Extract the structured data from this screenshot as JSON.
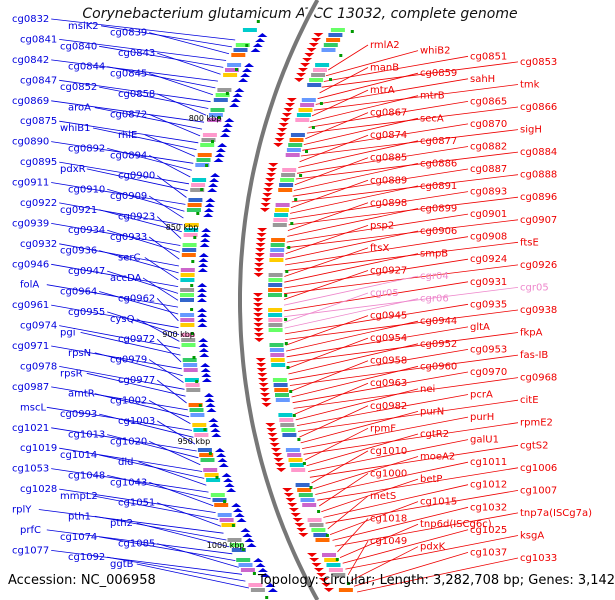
{
  "title": "Corynebacterium glutamicum ATCC 13032, complete genome",
  "footer": {
    "accession": "Accession: NC_006958",
    "topology": "Topology: circular; Length: 3,282,708 bp; Genes: 3,142"
  },
  "scale_labels": [
    "800 kbp",
    "850 kbp",
    "900 kbp",
    "950 kbp",
    "1000 kbp"
  ],
  "left_labels": [
    "cg0832",
    "msiK2",
    "cg0839",
    "cg0841",
    "cg0840",
    "cg0843",
    "cg0842",
    "cg0844",
    "cg0845",
    "cg0847",
    "cg0852",
    "cg0858",
    "cg0869",
    "aroA",
    "cg0872",
    "cg0875",
    "whiB1",
    "rhlE",
    "cg0890",
    "cg0892",
    "cg0894",
    "cg0895",
    "pdxR",
    "cg0900",
    "cg0911",
    "cg0910",
    "cg0909",
    "cg0922",
    "cg0921",
    "cg0923",
    "cg0939",
    "cg0934",
    "cg0933",
    "cg0932",
    "cg0936",
    "serC",
    "cg0946",
    "cg0947",
    "accDA",
    "folA",
    "cg0964",
    "cg0962",
    "cg0961",
    "cg0955",
    "cysQ",
    "cg0974",
    "pgi",
    "cg0972",
    "cg0971",
    "rpsN",
    "cg0979",
    "cg0978",
    "rpsR",
    "cg0977",
    "cg0987",
    "amtR",
    "cg1002",
    "mscL",
    "cg0993",
    "cg1003",
    "cg1021",
    "cg1013",
    "cg1020",
    "cg1019",
    "cg1014",
    "dld",
    "cg1053",
    "cg1048",
    "cg1043",
    "cg1028",
    "mmpL2",
    "cg1051",
    "rplY",
    "pth1",
    "pth2",
    "prfC",
    "cg1074",
    "cg1085",
    "cg1077",
    "cg1092",
    "ggtB"
  ],
  "right_labels": [
    "rmlA2",
    "whiB2",
    "cg0851",
    "cg0853",
    "manB",
    "cg0859",
    "sahH",
    "tmk",
    "mtrA",
    "mtrB",
    "cg0865",
    "cg0866",
    "cg0867",
    "secA",
    "cg0870",
    "sigH",
    "cg0874",
    "cg0877",
    "cg0882",
    "cg0884",
    "cg0885",
    "cg0886",
    "cg0887",
    "cg0888",
    "cg0889",
    "cg0891",
    "cg0893",
    "cg0896",
    "cg0898",
    "cg0899",
    "cg0901",
    "cg0907",
    "psp2",
    "cg0906",
    "cg0908",
    "ftsE",
    "ftsX",
    "smpB",
    "cg0924",
    "cg0926",
    "cg0927",
    "cgr04",
    "cg0931",
    "cgr05",
    "cgr05",
    "cgr06",
    "cg0935",
    "cg0938",
    "cg0945",
    "cg0944",
    "gltA",
    "fkpA",
    "cg0954",
    "cg0952",
    "cg0953",
    "fas-IB",
    "cg0958",
    "cg0960",
    "cg0970",
    "cg0968",
    "cg0963",
    "nei",
    "pcrA",
    "citE",
    "cg0982",
    "purN",
    "purH",
    "rpmE2",
    "rpmF",
    "cgtR2",
    "galU1",
    "cgtS2",
    "cg1010",
    "moeA2",
    "cg1011",
    "cg1006",
    "cg1000",
    "betP",
    "cg1012",
    "cg1007",
    "metS",
    "cg1015",
    "cg1032",
    "tnp7a(ISCg7a)",
    "cg1018",
    "tnp6d(ISCg6c)",
    "cg1025",
    "ksgA",
    "cg1049",
    "pdxK",
    "cg1037",
    "cg1033"
  ],
  "colors": {
    "forward": "#0000dd",
    "reverse": "#ee0000",
    "rna": "#ee88cc",
    "axis": "#777777",
    "tick": "#009900"
  }
}
